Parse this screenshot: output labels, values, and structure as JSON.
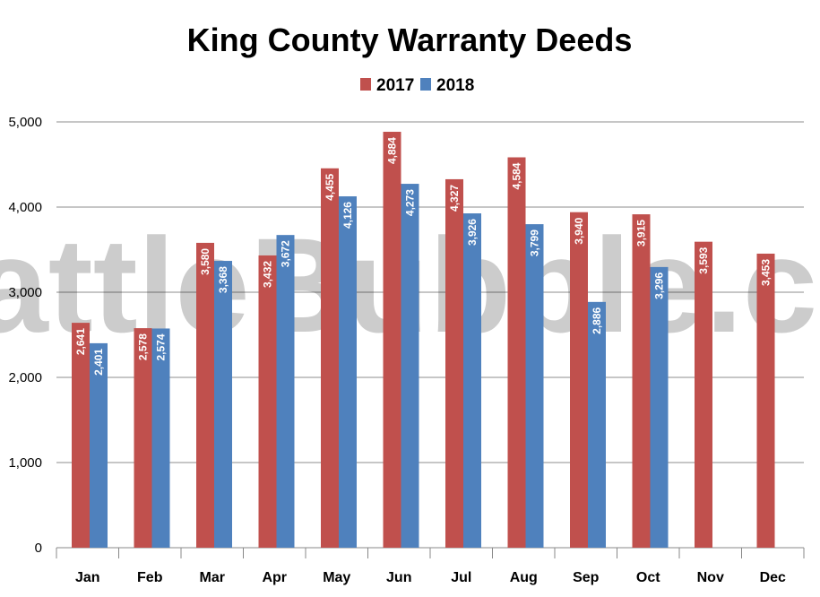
{
  "chart_data": {
    "type": "bar",
    "title": "King County Warranty Deeds",
    "categories": [
      "Jan",
      "Feb",
      "Mar",
      "Apr",
      "May",
      "Jun",
      "Jul",
      "Aug",
      "Sep",
      "Oct",
      "Nov",
      "Dec"
    ],
    "series": [
      {
        "name": "2017",
        "color": "#c0504d",
        "values": [
          2641,
          2578,
          3580,
          3432,
          4455,
          4884,
          4327,
          4584,
          3940,
          3915,
          3593,
          3453
        ]
      },
      {
        "name": "2018",
        "color": "#4f81bd",
        "values": [
          2401,
          2574,
          3368,
          3672,
          4126,
          4273,
          3926,
          3799,
          2886,
          3296,
          null,
          null
        ]
      }
    ],
    "y_ticks": [
      "0",
      "1,000",
      "2,000",
      "3,000",
      "4,000",
      "5,000"
    ],
    "ylim": [
      0,
      5000
    ],
    "legend_position": "top-center",
    "grid": true,
    "watermark": "SeattleBubble.com"
  }
}
